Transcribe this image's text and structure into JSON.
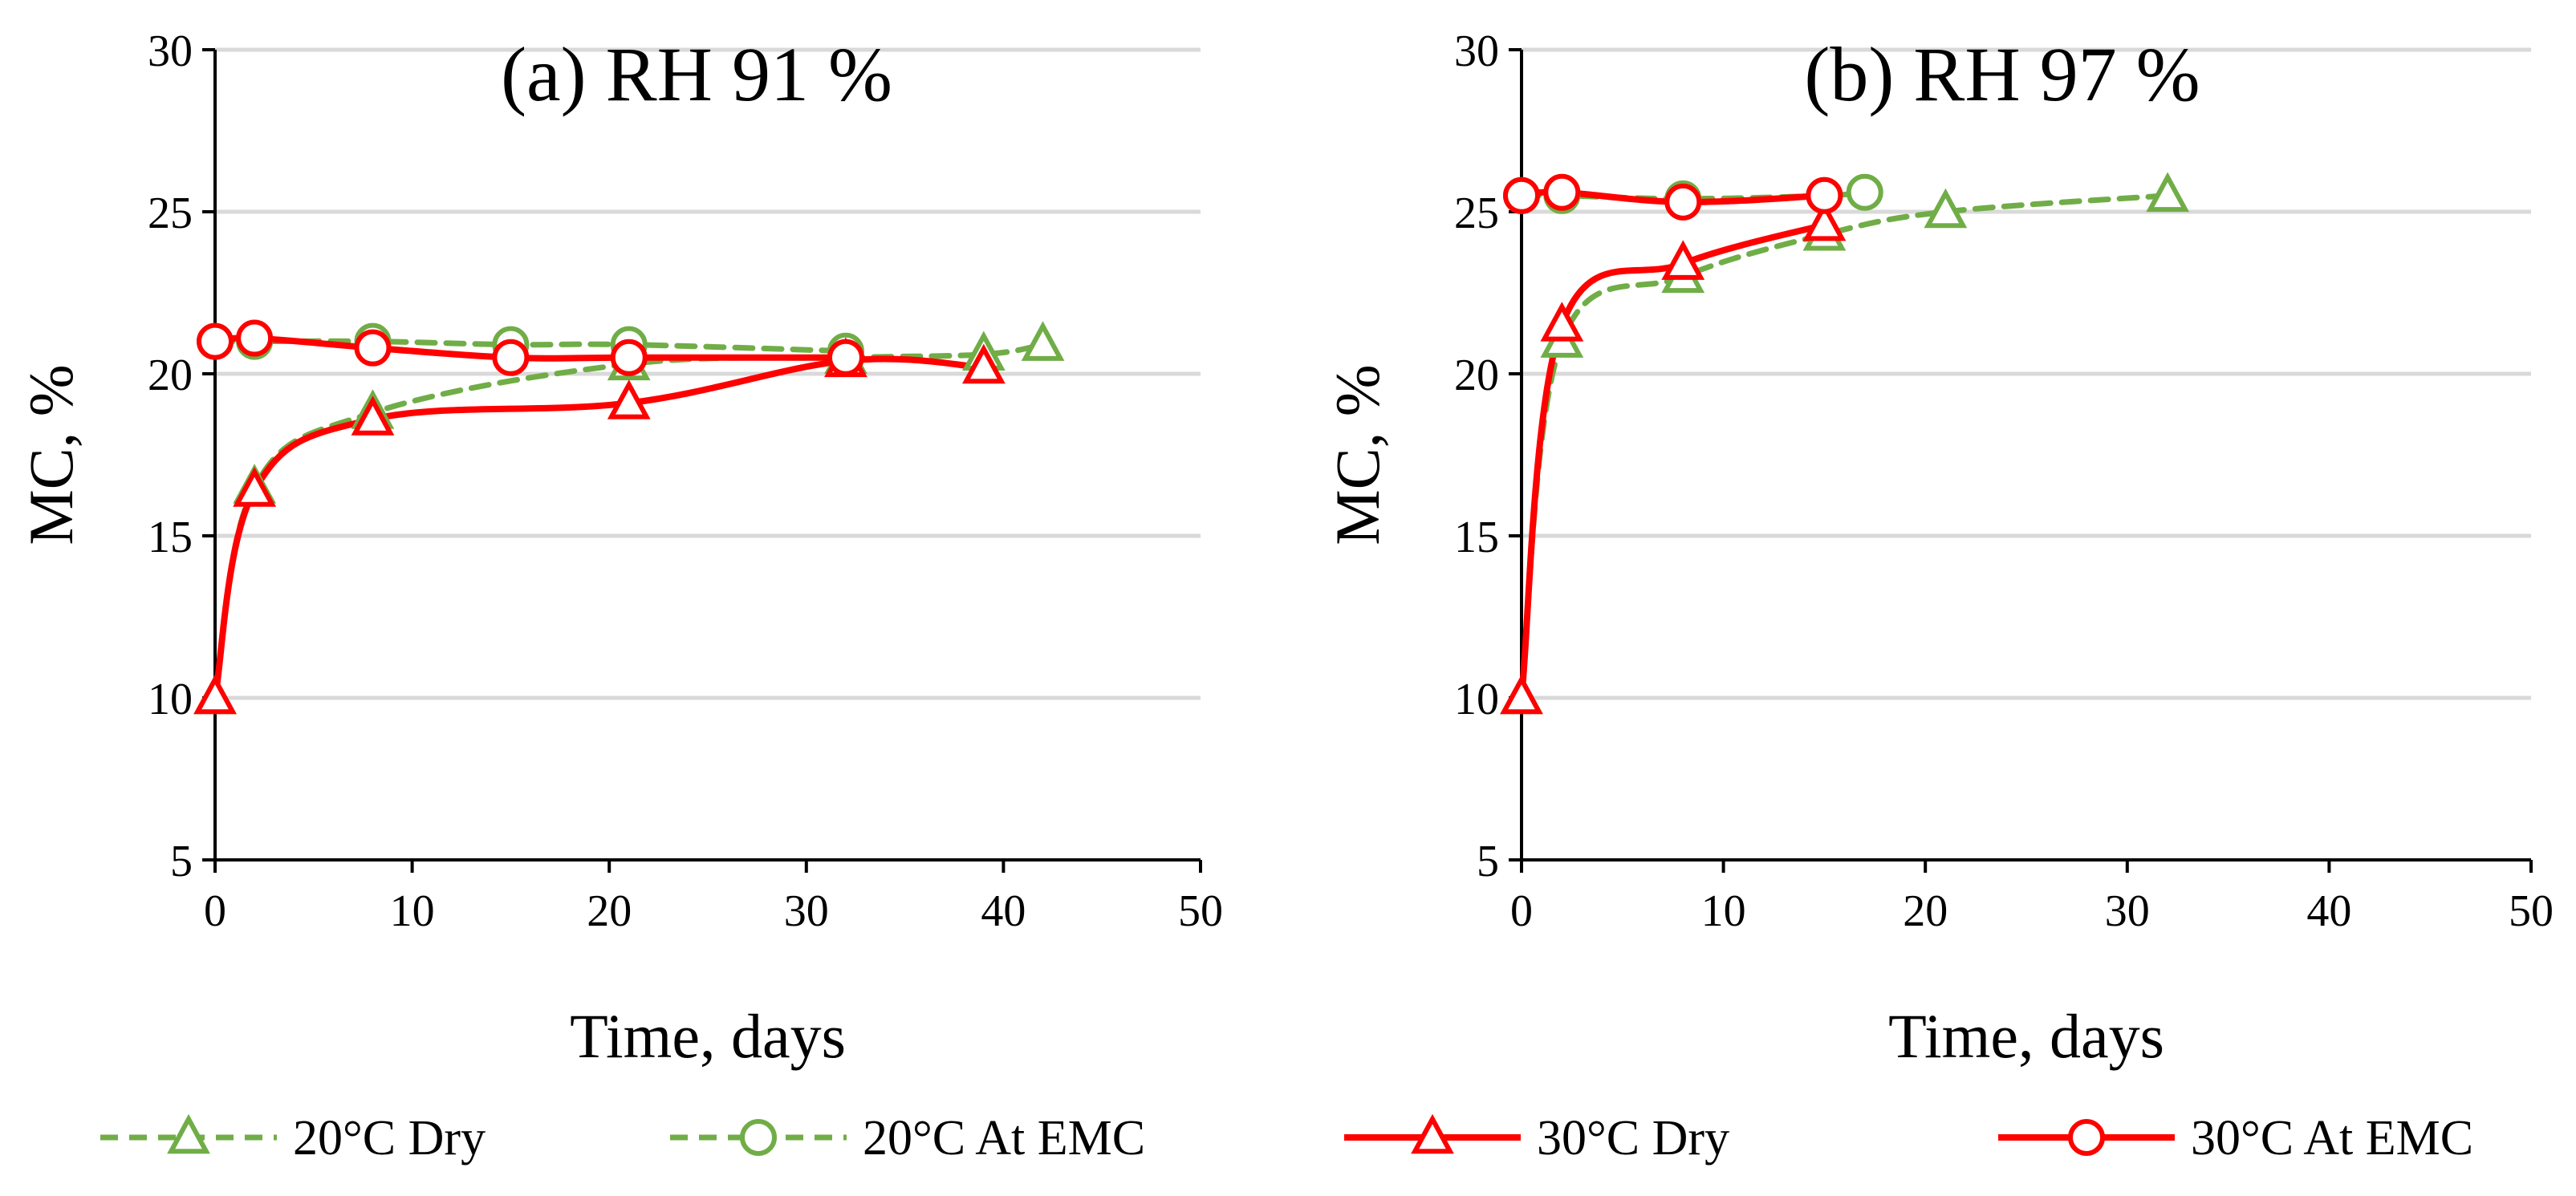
{
  "chart_data": [
    {
      "type": "line",
      "title": "(a) RH 91 %",
      "xlabel": "Time, days",
      "ylabel": "MC, %",
      "xlim": [
        0,
        50
      ],
      "ylim": [
        5,
        30
      ],
      "xticks": [
        "0",
        "10",
        "20",
        "30",
        "40",
        "50"
      ],
      "yticks": [
        "5",
        "10",
        "15",
        "20",
        "25",
        "30"
      ],
      "grid": "horizontal",
      "series": [
        {
          "name": "20°C Dry",
          "x": [
            0,
            2,
            8,
            21,
            32,
            39,
            42
          ],
          "y": [
            10.0,
            16.5,
            18.8,
            20.3,
            20.5,
            20.6,
            20.9
          ]
        },
        {
          "name": "20°C At EMC",
          "x": [
            0,
            2,
            8,
            15,
            21,
            32
          ],
          "y": [
            21.0,
            21.0,
            21.0,
            20.9,
            20.9,
            20.7
          ]
        },
        {
          "name": "30°C Dry",
          "x": [
            0,
            2,
            8,
            21,
            32,
            39
          ],
          "y": [
            10.0,
            16.4,
            18.6,
            19.1,
            20.4,
            20.2
          ]
        },
        {
          "name": "30°C At EMC",
          "x": [
            0,
            2,
            8,
            15,
            21,
            32
          ],
          "y": [
            21.0,
            21.1,
            20.8,
            20.5,
            20.5,
            20.5
          ]
        }
      ]
    },
    {
      "type": "line",
      "title": "(b) RH 97 %",
      "xlabel": "Time, days",
      "ylabel": "MC, %",
      "xlim": [
        0,
        50
      ],
      "ylim": [
        5,
        30
      ],
      "xticks": [
        "0",
        "10",
        "20",
        "30",
        "40",
        "50"
      ],
      "yticks": [
        "5",
        "10",
        "15",
        "20",
        "25",
        "30"
      ],
      "grid": "horizontal",
      "series": [
        {
          "name": "20°C Dry",
          "x": [
            0,
            2,
            8,
            15,
            21,
            32
          ],
          "y": [
            10.0,
            21.0,
            23.0,
            24.3,
            25.0,
            25.5
          ]
        },
        {
          "name": "20°C At EMC",
          "x": [
            0,
            2,
            8,
            15,
            17
          ],
          "y": [
            25.5,
            25.5,
            25.4,
            25.5,
            25.6
          ]
        },
        {
          "name": "30°C Dry",
          "x": [
            0,
            2,
            8,
            15
          ],
          "y": [
            10.0,
            21.5,
            23.4,
            24.6
          ]
        },
        {
          "name": "30°C At EMC",
          "x": [
            0,
            2,
            8,
            15
          ],
          "y": [
            25.5,
            25.6,
            25.3,
            25.5
          ]
        }
      ]
    }
  ],
  "legend": {
    "placement": "bottom",
    "items": [
      "20°C Dry",
      "20°C At EMC",
      "30°C Dry",
      "30°C At EMC"
    ]
  },
  "colors": {
    "green": "#70ad47",
    "red": "#ff0000",
    "grid": "#d9d9d9",
    "axis": "#000000"
  }
}
